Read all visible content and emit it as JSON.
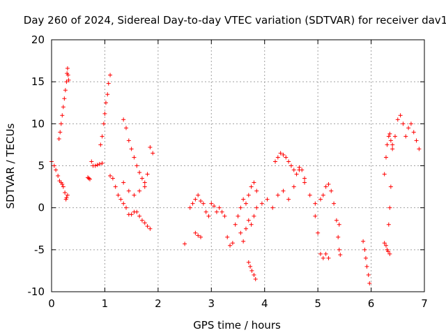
{
  "chart_data": {
    "type": "scatter",
    "title": "Day 260 of 2024, Sidereal Day-to-day VTEC variation (SDTVAR) for receiver dav1",
    "xlabel": "GPS time / hours",
    "ylabel": "SDTVAR / TECUs",
    "xlim": [
      0,
      7
    ],
    "ylim": [
      -10,
      20
    ],
    "xticks": [
      "0",
      "1",
      "2",
      "3",
      "4",
      "5",
      "6",
      "7"
    ],
    "yticks": [
      "-10",
      "-5",
      "0",
      "5",
      "10",
      "15",
      "20"
    ],
    "grid": true,
    "marker": "+",
    "color": "#ff0000",
    "segments": [
      {
        "x": [
          0.0,
          0.05,
          0.08,
          0.12,
          0.15,
          0.18,
          0.2,
          0.22,
          0.25,
          0.27,
          0.28,
          0.3
        ],
        "y": [
          5.5,
          5.0,
          4.5,
          3.8,
          3.2,
          3.0,
          2.8,
          2.5,
          1.8,
          1.0,
          1.2,
          1.5
        ]
      },
      {
        "x": [
          0.14,
          0.16,
          0.18,
          0.2,
          0.22,
          0.24,
          0.26,
          0.28,
          0.29,
          0.3,
          0.31,
          0.32
        ],
        "y": [
          8.2,
          9.0,
          10.0,
          11.0,
          12.0,
          13.0,
          14.0,
          15.0,
          16.0,
          16.6,
          15.8,
          15.2
        ]
      },
      {
        "x": [
          0.68,
          0.7,
          0.72,
          0.75,
          0.78,
          0.82,
          0.86,
          0.9,
          0.95
        ],
        "y": [
          3.6,
          3.5,
          3.4,
          5.5,
          5.0,
          5.0,
          5.1,
          5.2,
          5.3
        ]
      },
      {
        "x": [
          0.92,
          0.95,
          0.98,
          1.0,
          1.02,
          1.05,
          1.07,
          1.1
        ],
        "y": [
          7.5,
          8.5,
          10.0,
          11.2,
          12.5,
          13.5,
          14.8,
          15.8
        ]
      },
      {
        "x": [
          1.1,
          1.15,
          1.2,
          1.25,
          1.3,
          1.35,
          1.4,
          1.45,
          1.5,
          1.55,
          1.6,
          1.65,
          1.7,
          1.75,
          1.8,
          1.85
        ],
        "y": [
          3.8,
          3.5,
          2.5,
          1.5,
          1.0,
          0.5,
          0.0,
          -0.8,
          -0.8,
          -0.5,
          -0.5,
          -1.0,
          -1.5,
          -1.8,
          -2.2,
          -2.5
        ]
      },
      {
        "x": [
          1.35,
          1.4,
          1.45,
          1.5,
          1.55,
          1.6,
          1.65,
          1.7,
          1.75,
          1.8,
          1.85,
          1.9
        ],
        "y": [
          10.5,
          9.5,
          8.0,
          7.0,
          6.0,
          5.0,
          4.2,
          3.5,
          3.0,
          4.0,
          7.2,
          6.5
        ]
      },
      {
        "x": [
          1.35,
          1.45,
          1.55,
          1.65,
          1.75
        ],
        "y": [
          3.0,
          2.0,
          1.5,
          2.0,
          2.5
        ]
      },
      {
        "x": [
          2.5
        ],
        "y": [
          -4.3
        ]
      },
      {
        "x": [
          2.6,
          2.65,
          2.7,
          2.75,
          2.8,
          2.85,
          2.9,
          2.95,
          3.0,
          3.05,
          3.1,
          3.15,
          3.2,
          3.25
        ],
        "y": [
          0.0,
          0.5,
          1.0,
          1.5,
          0.8,
          0.5,
          -0.5,
          -1.0,
          0.5,
          0.2,
          -0.5,
          0.0,
          -0.5,
          -1.0
        ]
      },
      {
        "x": [
          2.7,
          2.75,
          2.8
        ],
        "y": [
          -3.0,
          -3.3,
          -3.5
        ]
      },
      {
        "x": [
          3.3,
          3.35,
          3.4,
          3.45,
          3.5,
          3.55,
          3.6,
          3.65,
          3.7,
          3.75,
          3.8,
          3.85
        ],
        "y": [
          -3.5,
          -4.5,
          -4.2,
          -2.0,
          -1.0,
          0.0,
          1.0,
          0.5,
          1.5,
          2.5,
          3.0,
          2.0
        ]
      },
      {
        "x": [
          3.55,
          3.6,
          3.65,
          3.7,
          3.75,
          3.8
        ],
        "y": [
          -3.0,
          -4.0,
          -2.5,
          -1.5,
          -2.0,
          -1.0
        ]
      },
      {
        "x": [
          3.7,
          3.73,
          3.76,
          3.8,
          3.83
        ],
        "y": [
          -6.5,
          -7.0,
          -7.5,
          -8.0,
          -8.5
        ]
      },
      {
        "x": [
          3.85,
          3.95,
          4.05,
          4.15,
          4.25,
          4.35,
          4.45,
          4.55,
          4.65,
          4.75,
          4.85,
          4.95
        ],
        "y": [
          0.0,
          0.5,
          1.0,
          0.0,
          1.5,
          2.0,
          1.0,
          2.5,
          4.5,
          3.0,
          1.5,
          0.5
        ]
      },
      {
        "x": [
          4.2,
          4.25,
          4.3,
          4.35,
          4.4,
          4.45,
          4.5,
          4.55,
          4.6,
          4.65,
          4.7,
          4.75
        ],
        "y": [
          5.5,
          6.0,
          6.5,
          6.3,
          6.0,
          5.5,
          5.0,
          4.5,
          4.0,
          4.8,
          4.5,
          3.5
        ]
      },
      {
        "x": [
          4.95,
          5.0,
          5.05,
          5.1,
          5.15,
          5.2
        ],
        "y": [
          -1.0,
          -3.0,
          -5.5,
          -6.0,
          -5.5,
          -6.0
        ]
      },
      {
        "x": [
          5.05,
          5.1,
          5.15,
          5.2,
          5.25,
          5.3,
          5.35,
          5.4
        ],
        "y": [
          1.0,
          1.5,
          2.5,
          2.8,
          2.0,
          0.5,
          -1.5,
          -2.0
        ]
      },
      {
        "x": [
          5.38,
          5.4,
          5.42
        ],
        "y": [
          -3.5,
          -5.0,
          -5.6
        ]
      },
      {
        "x": [
          5.85,
          5.88,
          5.9,
          5.92,
          5.95,
          5.97
        ],
        "y": [
          -4.0,
          -5.0,
          -6.0,
          -7.0,
          -8.0,
          -9.0
        ]
      },
      {
        "x": [
          6.25,
          6.28,
          6.3,
          6.32,
          6.35
        ],
        "y": [
          -4.2,
          -4.5,
          -5.0,
          -5.2,
          -5.5
        ]
      },
      {
        "x": [
          6.25,
          6.28,
          6.3,
          6.33,
          6.35,
          6.37,
          6.4
        ],
        "y": [
          4.0,
          6.0,
          7.5,
          8.5,
          8.8,
          8.0,
          7.5
        ]
      },
      {
        "x": [
          6.33,
          6.35,
          6.37
        ],
        "y": [
          -2.0,
          0.0,
          2.5
        ]
      },
      {
        "x": [
          6.4,
          6.45,
          6.5,
          6.55,
          6.6,
          6.65,
          6.7,
          6.75,
          6.8,
          6.85,
          6.9
        ],
        "y": [
          7.0,
          8.5,
          10.5,
          11.0,
          10.0,
          8.5,
          9.5,
          10.0,
          9.0,
          8.0,
          7.0
        ]
      }
    ]
  }
}
